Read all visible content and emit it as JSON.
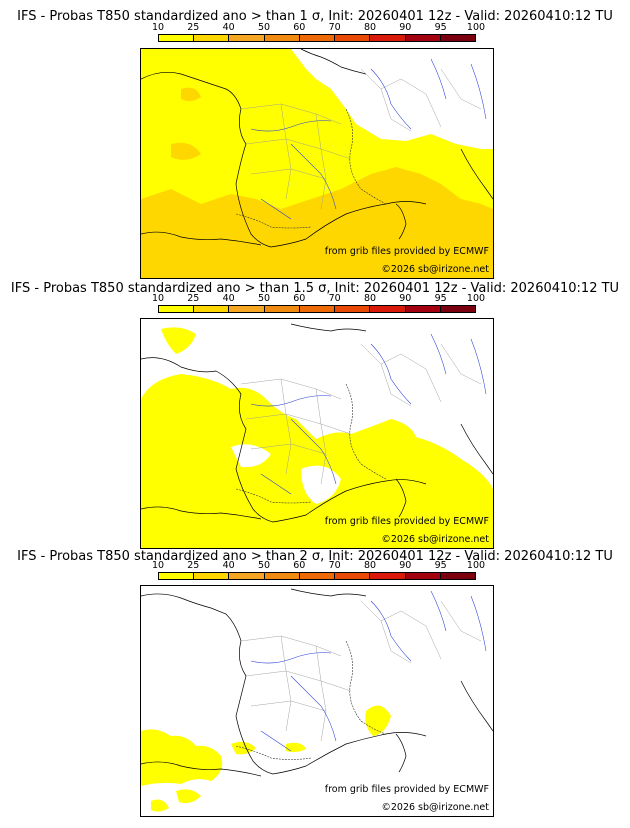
{
  "colorbar": {
    "ticks": [
      "10",
      "25",
      "40",
      "50",
      "60",
      "70",
      "80",
      "90",
      "95",
      "100"
    ],
    "colors": [
      "#ffff00",
      "#ffd700",
      "#f5a623",
      "#f08a10",
      "#ee6a06",
      "#e84a05",
      "#d91a0a",
      "#a30010",
      "#7a0010"
    ]
  },
  "panels": [
    {
      "title": "IFS - Probas T850  standardized ano > than 1 σ, Init: 20260401 12z - Valid: 20260410:12 TU",
      "source": "from grib files provided by ECMWF",
      "copyright": "©2026 sb@irizone.net"
    },
    {
      "title": "IFS - Probas T850  standardized ano > than 1.5 σ, Init: 20260401 12z - Valid: 20260410:12 TU",
      "source": "from grib files provided by ECMWF",
      "copyright": "©2026 sb@irizone.net"
    },
    {
      "title": "IFS - Probas T850  standardized ano > than 2 σ, Init: 20260401 12z - Valid: 20260410:12 TU",
      "source": "from grib files provided by ECMWF",
      "copyright": "©2026 sb@irizone.net"
    }
  ]
}
